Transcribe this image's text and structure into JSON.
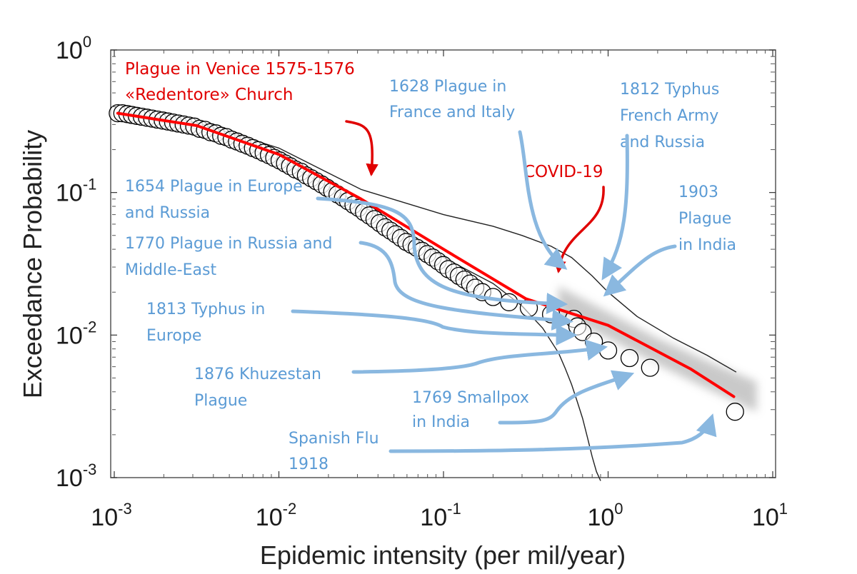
{
  "chart_data": {
    "type": "scatter",
    "xlabel": "Epidemic intensity (per mil/year)",
    "ylabel": "Exceedance Probability",
    "xscale": "log",
    "yscale": "log",
    "xlim": [
      0.001,
      10
    ],
    "ylim": [
      0.001,
      1
    ],
    "x_ticks": [
      {
        "base": "10",
        "exp": "-3"
      },
      {
        "base": "10",
        "exp": "-2"
      },
      {
        "base": "10",
        "exp": "-1"
      },
      {
        "base": "10",
        "exp": "0"
      },
      {
        "base": "10",
        "exp": "1"
      }
    ],
    "y_ticks": [
      {
        "base": "10",
        "exp": "0"
      },
      {
        "base": "10",
        "exp": "-1"
      },
      {
        "base": "10",
        "exp": "-2"
      },
      {
        "base": "10",
        "exp": "-3"
      }
    ],
    "grid": false,
    "colors": {
      "observed": "#000000",
      "fit": "#ff0000",
      "annotation": "#5b9bd5",
      "highlight": "#e00000",
      "band": "#b8b8b8"
    },
    "observed": {
      "x": [
        0.00105,
        0.00112,
        0.0012,
        0.00128,
        0.00137,
        0.00147,
        0.00158,
        0.0017,
        0.00183,
        0.00197,
        0.00212,
        0.00228,
        0.00245,
        0.00264,
        0.00284,
        0.00306,
        0.0033,
        0.00356,
        0.00384,
        0.00414,
        0.00446,
        0.0048,
        0.00517,
        0.00557,
        0.006,
        0.00646,
        0.00696,
        0.0075,
        0.00808,
        0.0087,
        0.00937,
        0.0101,
        0.0109,
        0.0117,
        0.0126,
        0.0136,
        0.0146,
        0.0157,
        0.0169,
        0.0182,
        0.0196,
        0.0211,
        0.0227,
        0.0245,
        0.0263,
        0.0284,
        0.0305,
        0.0329,
        0.0354,
        0.0381,
        0.041,
        0.0442,
        0.0476,
        0.0512,
        0.0551,
        0.0594,
        0.0639,
        0.0688,
        0.0741,
        0.0798,
        0.0859,
        0.0925,
        0.0996,
        0.107,
        0.116,
        0.124,
        0.134,
        0.145,
        0.156,
        0.172,
        0.2,
        0.25,
        0.33,
        0.45,
        0.62,
        0.65,
        0.7,
        0.82,
        1.0,
        1.35,
        1.8,
        5.9
      ],
      "y": [
        0.36,
        0.36,
        0.355,
        0.35,
        0.345,
        0.34,
        0.335,
        0.33,
        0.325,
        0.32,
        0.315,
        0.31,
        0.305,
        0.3,
        0.295,
        0.29,
        0.28,
        0.275,
        0.265,
        0.26,
        0.25,
        0.245,
        0.235,
        0.228,
        0.22,
        0.213,
        0.205,
        0.198,
        0.19,
        0.183,
        0.175,
        0.168,
        0.16,
        0.153,
        0.145,
        0.14,
        0.132,
        0.126,
        0.12,
        0.114,
        0.108,
        0.102,
        0.097,
        0.092,
        0.087,
        0.082,
        0.078,
        0.073,
        0.069,
        0.065,
        0.061,
        0.057,
        0.054,
        0.051,
        0.048,
        0.045,
        0.043,
        0.041,
        0.039,
        0.037,
        0.035,
        0.033,
        0.031,
        0.029,
        0.0275,
        0.026,
        0.0245,
        0.023,
        0.0215,
        0.02,
        0.0185,
        0.017,
        0.0155,
        0.014,
        0.013,
        0.0115,
        0.0105,
        0.009,
        0.0078,
        0.0069,
        0.0059,
        0.0029
      ]
    },
    "fit": {
      "x": [
        0.00105,
        0.00316,
        0.01,
        0.0316,
        0.1,
        0.316,
        1.0,
        3.16,
        5.8
      ],
      "y": [
        0.36,
        0.295,
        0.185,
        0.09,
        0.04,
        0.018,
        0.0117,
        0.0058,
        0.0037
      ]
    },
    "bounds": [
      {
        "x": [
          0.00105,
          0.00316,
          0.01,
          0.0316,
          0.1,
          0.2,
          0.3,
          0.45,
          0.6,
          0.8,
          1.0,
          1.5,
          2.5,
          4.0,
          6.0
        ],
        "y": [
          0.37,
          0.31,
          0.205,
          0.105,
          0.07,
          0.058,
          0.05,
          0.042,
          0.035,
          0.026,
          0.02,
          0.0135,
          0.0095,
          0.0072,
          0.0055
        ]
      },
      {
        "x": [
          0.00105,
          0.00316,
          0.01,
          0.0316,
          0.1,
          0.2,
          0.3,
          0.4,
          0.5,
          0.55,
          0.6,
          0.65,
          0.7,
          0.75,
          0.8,
          0.85,
          0.9
        ],
        "y": [
          0.355,
          0.28,
          0.17,
          0.082,
          0.035,
          0.023,
          0.016,
          0.0112,
          0.0075,
          0.0058,
          0.0045,
          0.0034,
          0.0026,
          0.0019,
          0.0014,
          0.0011,
          0.00095
        ]
      }
    ],
    "band": {
      "x": [
        0.5,
        1.0,
        2.0,
        4.0,
        8.0
      ],
      "lower": [
        0.014,
        0.0095,
        0.0062,
        0.0042,
        0.0029
      ],
      "upper": [
        0.022,
        0.0145,
        0.0095,
        0.0066,
        0.0047
      ]
    },
    "annotations": {
      "venice": {
        "lines": [
          "Plague in Venice 1575-1576",
          "«Redentore» Church"
        ],
        "target": [
          0.038,
          0.115
        ]
      },
      "covid": {
        "lines": [
          "COVID-19"
        ],
        "target": [
          0.5,
          0.024
        ]
      },
      "blue": [
        {
          "lines": [
            "1628 Plague in",
            "France and Italy"
          ],
          "target": [
            0.62,
            0.028
          ]
        },
        {
          "lines": [
            "1812 Typhus",
            "French Army",
            "and Russia"
          ],
          "target": [
            0.82,
            0.0245
          ]
        },
        {
          "lines": [
            "1903",
            "Plague",
            "in India"
          ],
          "target": [
            0.85,
            0.0195
          ]
        },
        {
          "lines": [
            "1654 Plague in Europe",
            "and Russia"
          ],
          "target": [
            0.63,
            0.0165
          ]
        },
        {
          "lines": [
            "1770 Plague in Russia and",
            "Middle-East"
          ],
          "target": [
            0.68,
            0.0125
          ]
        },
        {
          "lines": [
            "1813 Typhus in",
            "Europe"
          ],
          "target": [
            0.72,
            0.01
          ]
        },
        {
          "lines": [
            "1876 Khuzestan",
            "Plague"
          ],
          "target": [
            1.1,
            0.0082
          ]
        },
        {
          "lines": [
            "1769 Smallpox",
            "in India"
          ],
          "target": [
            1.6,
            0.0053
          ]
        },
        {
          "lines": [
            "Spanish Flu",
            "1918"
          ],
          "target": [
            5.2,
            0.0027
          ]
        }
      ]
    }
  }
}
